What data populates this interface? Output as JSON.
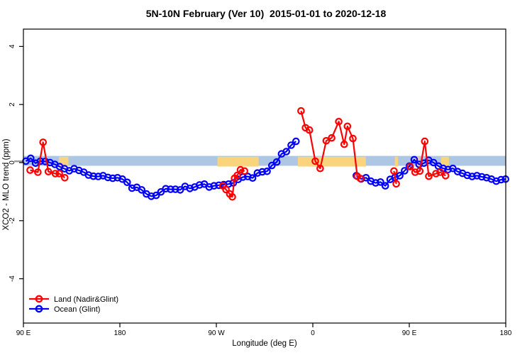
{
  "title": "5N-10N February (Ver 10)  2015-01-01 to 2020-12-18",
  "axes": {
    "x": {
      "label": "Longitude (deg E)",
      "ticks": [
        {
          "lon": 90,
          "label": "90 E"
        },
        {
          "lon": 180,
          "label": "180"
        },
        {
          "lon": 270,
          "label": "90 W"
        },
        {
          "lon": 360,
          "label": "0"
        },
        {
          "lon": 450,
          "label": "90 E"
        },
        {
          "lon": 540,
          "label": "180"
        }
      ]
    },
    "y": {
      "label": "XCO2 - MLO trend (ppm)",
      "ticks": [
        {
          "val": -4,
          "label": "-4"
        },
        {
          "val": -2,
          "label": "-2"
        },
        {
          "val": 0,
          "label": "0"
        },
        {
          "val": 2,
          "label": "2"
        },
        {
          "val": 4,
          "label": "4"
        }
      ]
    }
  },
  "legend": {
    "items": [
      {
        "label": "Land (Nadir&Glint)",
        "color": "#ff0000"
      },
      {
        "label": "Ocean (Glint)",
        "color": "#0000ff"
      }
    ]
  },
  "colors": {
    "land_series": "#ff0000",
    "ocean_series": "#0000ff",
    "zero_band": "#adc6e3",
    "land_shading": "#f9d47c",
    "axis": "#000000"
  },
  "chart_data": {
    "type": "line",
    "xlabel": "Longitude (deg E)",
    "ylabel": "XCO2 - MLO trend (ppm)",
    "xlim": [
      90,
      540
    ],
    "ylim": [
      -4.6,
      4.6
    ],
    "grid": false,
    "legend_position": "bottom-left",
    "band": {
      "lo": -0.11,
      "hi": 0.23,
      "color": "#adc6e3"
    },
    "land_shading": {
      "color": "#f9d47c",
      "ranges": [
        [
          123,
          132
        ],
        [
          271,
          309.5
        ],
        [
          346,
          409.5
        ],
        [
          436.5,
          439.5
        ],
        [
          456,
          459.5
        ],
        [
          479.5,
          487
        ]
      ]
    },
    "series": [
      {
        "name": "Land (Nadir&Glint)",
        "color": "#ff0000",
        "segments": [
          [
            [
              96.3,
              -0.26
            ],
            [
              103.5,
              -0.33
            ],
            [
              108.3,
              0.7
            ],
            [
              113.3,
              -0.31
            ],
            [
              119.8,
              -0.38
            ],
            [
              123.5,
              -0.38
            ],
            [
              128.6,
              -0.52
            ]
          ],
          [
            [
              276,
              -0.8
            ],
            [
              279,
              -0.93
            ],
            [
              282.5,
              -1.08
            ],
            [
              284.9,
              -1.18
            ],
            [
              287,
              -0.54
            ],
            [
              289.5,
              -0.44
            ],
            [
              292.5,
              -0.25
            ],
            [
              296.3,
              -0.29
            ]
          ],
          [
            [
              349,
              1.78
            ],
            [
              353.2,
              1.2
            ],
            [
              356.8,
              1.12
            ],
            [
              362.3,
              0.05
            ],
            [
              366.9,
              -0.2
            ],
            [
              372.5,
              0.75
            ],
            [
              377.6,
              0.85
            ],
            [
              384.2,
              1.41
            ],
            [
              389.3,
              0.63
            ],
            [
              392.3,
              1.25
            ],
            [
              397.4,
              0.83
            ],
            [
              401.5,
              -0.47
            ],
            [
              404.5,
              -0.55
            ]
          ],
          [
            [
              435.7,
              -0.29
            ],
            [
              437.8,
              -0.73
            ]
          ],
          [
            [
              450.7,
              -0.14
            ],
            [
              455.4,
              -0.33
            ],
            [
              459.8,
              -0.29
            ],
            [
              464.4,
              0.73
            ],
            [
              468.2,
              -0.47
            ],
            [
              474.9,
              -0.38
            ],
            [
              478.8,
              -0.33
            ],
            [
              483.9,
              -0.45
            ]
          ]
        ]
      },
      {
        "name": "Ocean (Glint)",
        "color": "#0000ff",
        "segments": [
          [
            [
              92.3,
              0.05
            ],
            [
              96.8,
              0.15
            ],
            [
              101.3,
              -0.02
            ],
            [
              105.8,
              0.05
            ],
            [
              110.3,
              0.04
            ],
            [
              114.8,
              0.0
            ],
            [
              119.3,
              -0.06
            ],
            [
              123.8,
              -0.14
            ],
            [
              128.3,
              -0.21
            ],
            [
              132.8,
              -0.28
            ],
            [
              137.3,
              -0.21
            ],
            [
              141.8,
              -0.27
            ],
            [
              146.3,
              -0.33
            ],
            [
              150.8,
              -0.43
            ],
            [
              155.3,
              -0.47
            ],
            [
              159.8,
              -0.48
            ],
            [
              164.3,
              -0.45
            ],
            [
              168.8,
              -0.51
            ],
            [
              173.3,
              -0.54
            ],
            [
              177.8,
              -0.52
            ],
            [
              182.3,
              -0.57
            ],
            [
              186.8,
              -0.68
            ],
            [
              191.3,
              -0.88
            ],
            [
              195.8,
              -0.85
            ],
            [
              200.3,
              -0.94
            ],
            [
              204.8,
              -1.08
            ],
            [
              209.3,
              -1.16
            ],
            [
              213.8,
              -1.13
            ],
            [
              218.3,
              -1.01
            ],
            [
              222.8,
              -0.9
            ],
            [
              227.3,
              -0.92
            ],
            [
              231.8,
              -0.92
            ],
            [
              236.3,
              -0.94
            ],
            [
              240.8,
              -0.82
            ],
            [
              245.3,
              -0.89
            ],
            [
              249.8,
              -0.84
            ],
            [
              254.3,
              -0.77
            ],
            [
              258.8,
              -0.74
            ],
            [
              263.3,
              -0.84
            ],
            [
              267.8,
              -0.8
            ],
            [
              272.3,
              -0.78
            ],
            [
              276.8,
              -0.76
            ],
            [
              281.3,
              -0.74
            ],
            [
              285.8,
              -0.7
            ],
            [
              290.3,
              -0.58
            ],
            [
              294.8,
              -0.5
            ],
            [
              299.3,
              -0.48
            ],
            [
              303.8,
              -0.53
            ],
            [
              308.3,
              -0.36
            ],
            [
              312.8,
              -0.32
            ],
            [
              317.3,
              -0.3
            ],
            [
              321.8,
              -0.1
            ],
            [
              326.3,
              0.02
            ],
            [
              330.8,
              0.3
            ],
            [
              335.3,
              0.38
            ],
            [
              339.8,
              0.6
            ],
            [
              344.3,
              0.73
            ]
          ],
          [
            [
              400.6,
              -0.45
            ],
            [
              405.1,
              -0.56
            ],
            [
              409.6,
              -0.52
            ],
            [
              414.1,
              -0.64
            ],
            [
              418.6,
              -0.7
            ],
            [
              423.1,
              -0.67
            ],
            [
              427.6,
              -0.8
            ],
            [
              432.1,
              -0.58
            ],
            [
              436.6,
              -0.51
            ],
            [
              441.1,
              -0.45
            ],
            [
              445.6,
              -0.28
            ],
            [
              450.1,
              -0.12
            ],
            [
              454.6,
              0.1
            ],
            [
              459.1,
              -0.06
            ],
            [
              463.6,
              -0.02
            ],
            [
              468.1,
              0.08
            ],
            [
              472.6,
              0.0
            ],
            [
              477.1,
              -0.12
            ],
            [
              481.6,
              -0.2
            ],
            [
              486.1,
              -0.24
            ],
            [
              490.6,
              -0.2
            ],
            [
              495.1,
              -0.31
            ],
            [
              499.6,
              -0.37
            ],
            [
              504.1,
              -0.44
            ],
            [
              508.6,
              -0.48
            ],
            [
              513.1,
              -0.45
            ],
            [
              517.6,
              -0.49
            ],
            [
              522.1,
              -0.52
            ],
            [
              526.6,
              -0.57
            ],
            [
              531.1,
              -0.64
            ],
            [
              535.6,
              -0.59
            ],
            [
              539.8,
              -0.57
            ]
          ]
        ]
      }
    ]
  }
}
